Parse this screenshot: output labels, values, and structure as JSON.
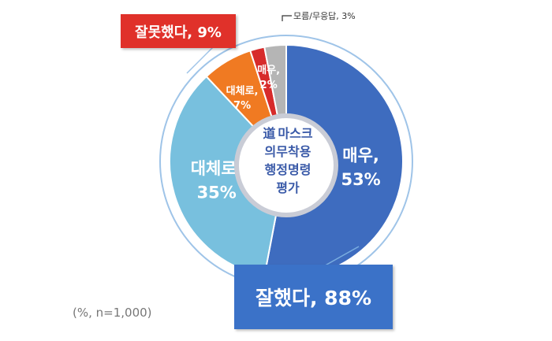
{
  "chart_data": {
    "type": "pie",
    "title_char": "道",
    "title_lines": [
      "마스크",
      "의무착용",
      "행정명령",
      "평가"
    ],
    "slices": [
      {
        "label": "매우,",
        "value": 53,
        "value_text": "53%",
        "color": "#3e6cbf"
      },
      {
        "label": "대체로,",
        "value": 35,
        "value_text": "35%",
        "color": "#78c0de"
      },
      {
        "label": "대체로,",
        "value": 7,
        "value_text": "7%",
        "color": "#f07a22"
      },
      {
        "label": "매우,",
        "value": 2,
        "value_text": "2%",
        "color": "#d72b2b"
      },
      {
        "label": "모름/무응답,",
        "value": 3,
        "value_text": "3%",
        "color": "#b5b5b5"
      }
    ],
    "groups": [
      {
        "label": "잘했다, 88%",
        "value": 88,
        "color": "#3b72c8"
      },
      {
        "label": "잘못했다, 9%",
        "value": 9,
        "color": "#e0312a"
      }
    ],
    "note": "(%, n=1,000)"
  }
}
